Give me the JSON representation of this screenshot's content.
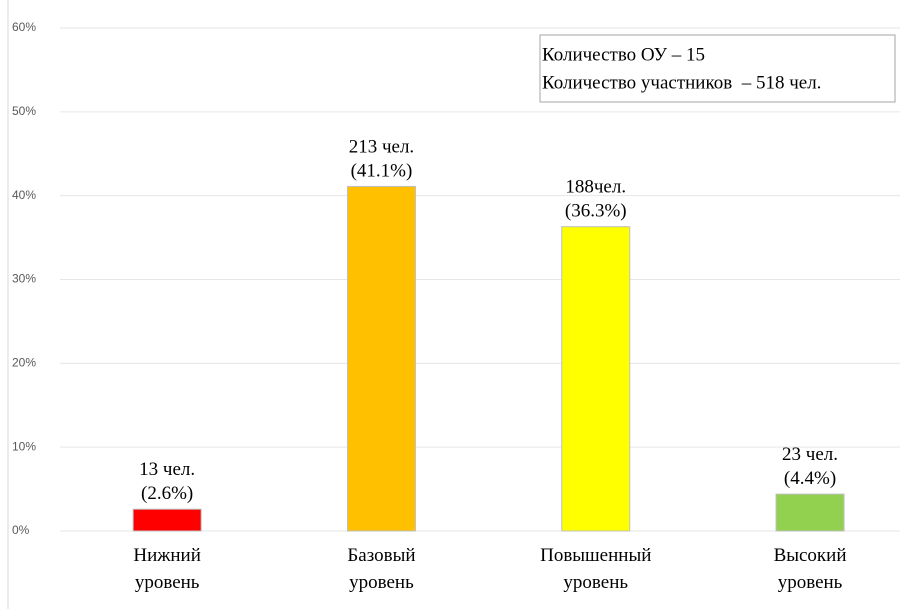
{
  "chart_data": {
    "type": "bar",
    "categories": [
      [
        "Нижний",
        "уровень"
      ],
      [
        "Базовый",
        "уровень"
      ],
      [
        "Повышенный",
        "уровень"
      ],
      [
        "Высокий",
        "уровень"
      ]
    ],
    "values": [
      2.6,
      41.1,
      36.3,
      4.4
    ],
    "value_labels": [
      [
        "13 чел.",
        "(2.6%)"
      ],
      [
        "213 чел.",
        "(41.1%)"
      ],
      [
        "188чел.",
        "(36.3%)"
      ],
      [
        "23 чел.",
        "(4.4%)"
      ]
    ],
    "colors": [
      "#ff0000",
      "#ffc000",
      "#ffff00",
      "#92d050"
    ],
    "ylim": [
      0,
      60
    ],
    "yticks": [
      {
        "value": 0,
        "label": "0%"
      },
      {
        "value": 10,
        "label": "10%"
      },
      {
        "value": 20,
        "label": "20%"
      },
      {
        "value": 30,
        "label": "30%"
      },
      {
        "value": 40,
        "label": "40%"
      },
      {
        "value": 50,
        "label": "50%"
      },
      {
        "value": 60,
        "label": "60%"
      }
    ],
    "grid": true,
    "annotation": [
      "Количество ОУ – 15",
      "Количество участников  – 518 чел."
    ]
  }
}
